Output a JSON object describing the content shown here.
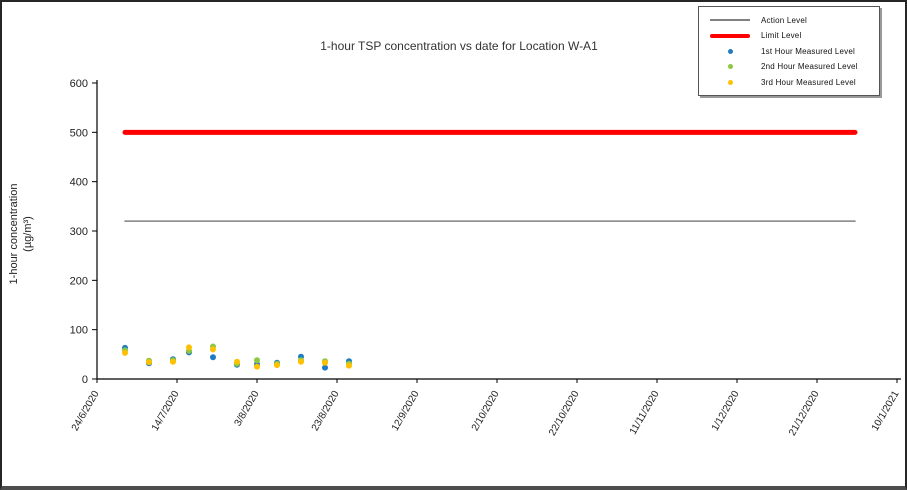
{
  "chart_data": {
    "type": "scatter",
    "title": "1-hour TSP concentration vs date for Location W-A1",
    "ylabel_line1": "1-hour concentration",
    "ylabel_line2": "(µg/m³)",
    "ylim": [
      0,
      600
    ],
    "yticks": [
      0,
      100,
      200,
      300,
      400,
      500,
      600
    ],
    "xticks": [
      "24/6/2020",
      "14/7/2020",
      "3/8/2020",
      "23/8/2020",
      "12/9/2020",
      "2/10/2020",
      "22/10/2020",
      "11/11/2020",
      "1/12/2020",
      "21/12/2020",
      "10/1/2021"
    ],
    "grid": false,
    "legend_position": "top-right",
    "reference_lines": [
      {
        "name": "Action Level",
        "value": 320,
        "color": "#808080",
        "stroke_width": 1.5
      },
      {
        "name": "Limit Level",
        "value": 500,
        "color": "#FF0000",
        "stroke_width": 5
      }
    ],
    "x_dates": [
      "1/7/2020",
      "7/7/2020",
      "13/7/2020",
      "17/7/2020",
      "23/7/2020",
      "29/7/2020",
      "3/8/2020",
      "8/8/2020",
      "14/8/2020",
      "20/8/2020",
      "26/8/2020"
    ],
    "series": [
      {
        "name": "1st Hour Measured Level",
        "color": "#1F7BC2",
        "values": [
          63,
          32,
          40,
          54,
          44,
          29,
          30,
          33,
          45,
          23,
          36
        ]
      },
      {
        "name": "2nd Hour Measured Level",
        "color": "#8DC63F",
        "values": [
          58,
          37,
          38,
          57,
          66,
          31,
          38,
          31,
          38,
          36,
          31
        ]
      },
      {
        "name": "3rd Hour Measured Level",
        "color": "#FFC000",
        "values": [
          53,
          34,
          35,
          64,
          60,
          35,
          25,
          28,
          35,
          33,
          27
        ]
      }
    ]
  },
  "legend": {
    "items": [
      {
        "label": "Action Level",
        "swatch": "line",
        "color": "#808080"
      },
      {
        "label": "Limit Level",
        "swatch": "thick-line",
        "color": "#FF0000"
      },
      {
        "label": "1st Hour Measured Level",
        "swatch": "dot",
        "color": "#1F7BC2"
      },
      {
        "label": "2nd Hour Measured Level",
        "swatch": "dot",
        "color": "#8DC63F"
      },
      {
        "label": "3rd Hour Measured Level",
        "swatch": "dot",
        "color": "#FFC000"
      }
    ]
  }
}
